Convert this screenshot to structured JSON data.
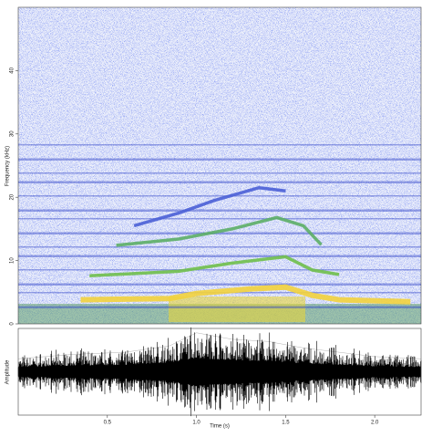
{
  "chart_data": [
    {
      "type": "spectrogram",
      "y_label": "Frequency (kHz)",
      "xlim": [
        0,
        2.26
      ],
      "ylim": [
        0,
        50
      ],
      "yticks": [
        0,
        10,
        20,
        30,
        40
      ],
      "contours": [
        {
          "color": "#f2d23c",
          "x": [
            0.35,
            0.85,
            1.0,
            1.3,
            1.5,
            1.65,
            1.8,
            2.2
          ],
          "values": [
            3.8,
            4.0,
            4.8,
            5.5,
            5.8,
            4.5,
            3.8,
            3.5
          ]
        },
        {
          "color": "#6fbf4a",
          "x": [
            0.4,
            0.9,
            1.2,
            1.5,
            1.65,
            1.8
          ],
          "values": [
            7.6,
            8.3,
            9.6,
            10.6,
            8.5,
            7.8
          ]
        },
        {
          "color": "#5cae66",
          "x": [
            0.55,
            0.9,
            1.2,
            1.45,
            1.6,
            1.7
          ],
          "values": [
            12.4,
            13.4,
            15.0,
            16.8,
            15.5,
            12.5
          ]
        },
        {
          "color": "#4a5fd6",
          "x": [
            0.65,
            0.9,
            1.1,
            1.35,
            1.5
          ],
          "values": [
            15.5,
            17.5,
            19.5,
            21.5,
            21.0
          ]
        }
      ]
    },
    {
      "type": "waveform",
      "x_label": "Time (s)",
      "y_label": "Amplitude",
      "xlim": [
        0,
        2.26
      ],
      "ylim": [
        -1,
        1
      ],
      "xticks": [
        0.5,
        {
          "value": 1,
          "label": "1.0"
        },
        1.5,
        {
          "value": 2,
          "label": "2.0"
        }
      ],
      "x": [
        0,
        0.3,
        0.6,
        0.85,
        1.0,
        1.2,
        1.4,
        1.6,
        1.8,
        2.0,
        2.26
      ],
      "values": [
        0.3,
        0.4,
        0.45,
        0.6,
        0.9,
        0.75,
        0.7,
        0.55,
        0.45,
        0.35,
        0.3
      ]
    }
  ]
}
